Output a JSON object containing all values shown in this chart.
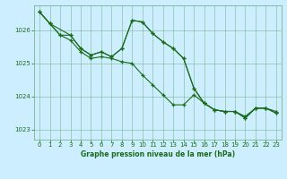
{
  "background_color": "#cceeff",
  "plot_bg_color": "#cceeff",
  "grid_color": "#66aa77",
  "line_color": "#1a6b1a",
  "marker_color": "#1a6b1a",
  "title": "Graphe pression niveau de la mer (hPa)",
  "ylim": [
    1022.7,
    1026.75
  ],
  "yticks": [
    1023,
    1024,
    1025,
    1026
  ],
  "xticks": [
    0,
    1,
    2,
    3,
    4,
    5,
    6,
    7,
    8,
    9,
    10,
    11,
    12,
    13,
    14,
    15,
    16,
    17,
    18,
    19,
    20,
    21,
    22,
    23
  ],
  "series1_x": [
    0,
    1,
    2,
    3,
    4,
    5,
    6,
    7,
    8,
    9,
    10,
    11,
    12,
    13,
    14,
    15,
    16,
    17,
    18,
    19,
    20,
    21,
    22,
    23
  ],
  "series1_y": [
    1026.55,
    1026.2,
    1025.85,
    1025.7,
    1025.35,
    1025.15,
    1025.2,
    1025.15,
    1025.05,
    1025.0,
    1024.65,
    1024.35,
    1024.05,
    1023.75,
    1023.75,
    1024.05,
    1023.8,
    1023.6,
    1023.55,
    1023.55,
    1023.4,
    1023.65,
    1023.65,
    1023.55
  ],
  "series2_x": [
    0,
    1,
    2,
    3,
    4,
    5,
    6,
    7,
    8,
    9,
    10,
    11,
    12,
    13,
    14,
    15,
    16,
    17,
    18,
    19,
    20,
    21,
    22,
    23
  ],
  "series2_y": [
    1026.55,
    1026.2,
    1025.85,
    1025.85,
    1025.45,
    1025.25,
    1025.35,
    1025.2,
    1025.45,
    1026.3,
    1026.25,
    1025.9,
    1025.65,
    1025.45,
    1025.15,
    1024.25,
    1023.8,
    1023.6,
    1023.55,
    1023.55,
    1023.35,
    1023.65,
    1023.65,
    1023.5
  ],
  "series3_x": [
    0,
    1,
    3,
    4,
    5,
    6,
    7,
    8,
    9,
    10,
    11,
    12,
    13,
    14,
    15,
    16,
    17,
    18,
    19,
    20,
    21,
    22,
    23
  ],
  "series3_y": [
    1026.55,
    1026.2,
    1025.85,
    1025.45,
    1025.25,
    1025.35,
    1025.2,
    1025.45,
    1026.3,
    1026.25,
    1025.9,
    1025.65,
    1025.45,
    1025.15,
    1024.25,
    1023.8,
    1023.6,
    1023.55,
    1023.55,
    1023.35,
    1023.65,
    1023.65,
    1023.5
  ]
}
